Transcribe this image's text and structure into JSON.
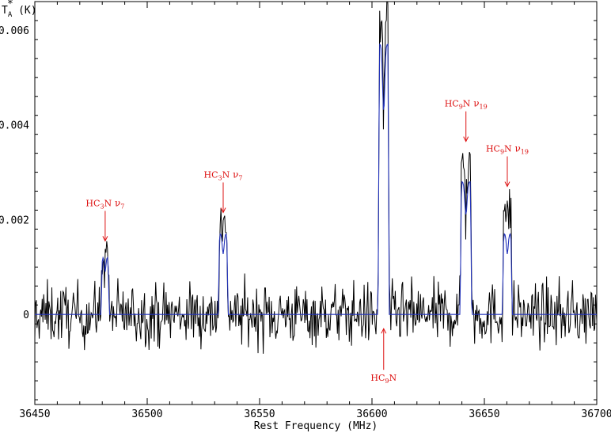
{
  "chart_data": {
    "type": "line",
    "xlabel": "Rest Frequency (MHz)",
    "ylabel": "T",
    "ylabel_sup": "*",
    "ylabel_sub": "A",
    "ylabel_unit": " (K)",
    "xlim": [
      36450,
      36700
    ],
    "ylim": [
      -0.0019,
      0.0066
    ],
    "xticks": [
      36450,
      36500,
      36550,
      36600,
      36650,
      36700
    ],
    "yticks": [
      {
        "value": 0,
        "label": "0"
      },
      {
        "value": 0.002,
        "label": "0.002"
      },
      {
        "value": 0.004,
        "label": "0.004"
      },
      {
        "value": 0.006,
        "label": "0.006"
      }
    ],
    "grid": false,
    "colors": {
      "observed": "#000000",
      "model": "#2233bb",
      "annotation": "#dd1111"
    },
    "lines": [
      {
        "center": 36481.3,
        "peak_obs": 0.0015,
        "peak_model": 0.0012,
        "width": 2.5
      },
      {
        "center": 36533.8,
        "peak_obs": 0.002,
        "peak_model": 0.0017,
        "width": 3.2
      },
      {
        "center": 36605.2,
        "peak_obs": 0.0063,
        "peak_model": 0.0057,
        "width": 3.8
      },
      {
        "center": 36641.8,
        "peak_obs": 0.0034,
        "peak_model": 0.0028,
        "width": 4.0
      },
      {
        "center": 36660.2,
        "peak_obs": 0.0025,
        "peak_model": 0.0017,
        "width": 3.2
      }
    ],
    "noise_rms": 0.0006,
    "annotations": [
      {
        "mol": "HC",
        "sub": "3",
        "rest": "N",
        "mode": "ν",
        "mode_sub": "7",
        "x": 36481.3,
        "y_arrow_tip": 0.00155,
        "dir": "down"
      },
      {
        "mol": "HC",
        "sub": "3",
        "rest": "N",
        "mode": "ν",
        "mode_sub": "7",
        "x": 36533.8,
        "y_arrow_tip": 0.00215,
        "dir": "down"
      },
      {
        "mol": "HC",
        "sub": "9",
        "rest": "N",
        "mode": "",
        "mode_sub": "",
        "x": 36605.2,
        "y_arrow_tip": -0.0003,
        "dir": "up"
      },
      {
        "mol": "HC",
        "sub": "9",
        "rest": "N",
        "mode": "ν",
        "mode_sub": "19",
        "x": 36641.8,
        "y_arrow_tip": 0.00365,
        "dir": "down"
      },
      {
        "mol": "HC",
        "sub": "9",
        "rest": "N",
        "mode": "ν",
        "mode_sub": "19",
        "x": 36660.2,
        "y_arrow_tip": 0.0027,
        "dir": "down"
      }
    ]
  }
}
